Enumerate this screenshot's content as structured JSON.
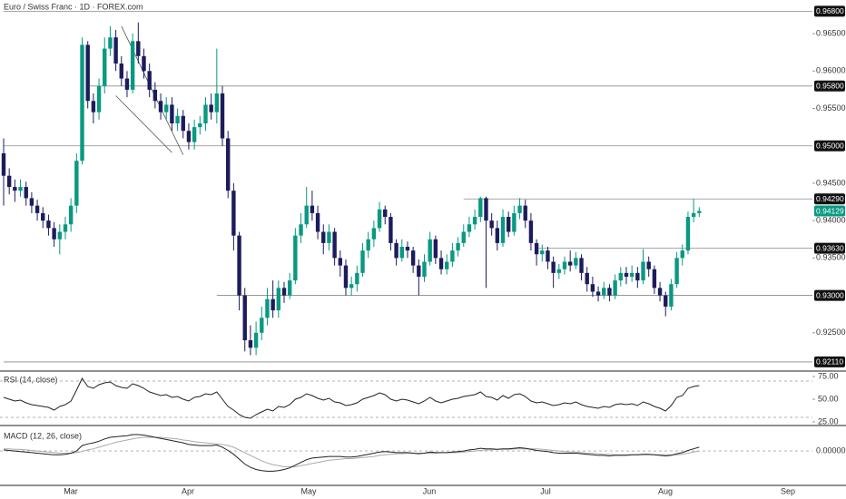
{
  "chart_data": {
    "type": "candlestick",
    "title": "Euro / Swiss Franc · 1D · FOREX.com",
    "up_color": "#089981",
    "down_color": "#1c1c5c",
    "ylim": [
      0.92,
      0.9695
    ],
    "yticks": [
      {
        "value": 0.965,
        "label": "0.96500"
      },
      {
        "value": 0.96,
        "label": "0.96000"
      },
      {
        "value": 0.955,
        "label": "0.95500"
      },
      {
        "value": 0.945,
        "label": "0.94500"
      },
      {
        "value": 0.94,
        "label": "0.94000"
      },
      {
        "value": 0.935,
        "label": "0.93500"
      },
      {
        "value": 0.925,
        "label": "0.92500"
      }
    ],
    "levels": [
      {
        "value": 0.968,
        "label": "0.96800",
        "from": 0
      },
      {
        "value": 0.958,
        "label": "0.95800",
        "from": 15
      },
      {
        "value": 0.95,
        "label": "0.95000",
        "from": 0
      },
      {
        "value": 0.9429,
        "label": "0.94290",
        "from": 82
      },
      {
        "value": 0.9363,
        "label": "0.93630",
        "from": 95
      },
      {
        "value": 0.93,
        "label": "0.93000",
        "from": 38
      },
      {
        "value": 0.9211,
        "label": "0.92110",
        "from": 0
      }
    ],
    "last_price": {
      "value": 0.94129,
      "label": "0.94129"
    },
    "trendlines": [
      {
        "x": [
          21,
          32
        ],
        "y": [
          0.966,
          0.9488
        ]
      },
      {
        "x": [
          20,
          30
        ],
        "y": [
          0.9567,
          0.9491
        ]
      }
    ],
    "months": [
      "Mar",
      "Apr",
      "May",
      "Jun",
      "Jul",
      "Aug",
      "Sep"
    ],
    "candles": [
      [
        0.949,
        0.951,
        0.942,
        0.946
      ],
      [
        0.946,
        0.947,
        0.9435,
        0.9445
      ],
      [
        0.9445,
        0.9455,
        0.9425,
        0.944
      ],
      [
        0.944,
        0.9455,
        0.9432,
        0.9445
      ],
      [
        0.9445,
        0.9452,
        0.942,
        0.943
      ],
      [
        0.943,
        0.9438,
        0.941,
        0.942
      ],
      [
        0.942,
        0.9428,
        0.94,
        0.941
      ],
      [
        0.941,
        0.9418,
        0.939,
        0.94
      ],
      [
        0.94,
        0.9408,
        0.938,
        0.939
      ],
      [
        0.939,
        0.9398,
        0.9365,
        0.9375
      ],
      [
        0.9375,
        0.9395,
        0.9355,
        0.9385
      ],
      [
        0.9385,
        0.9405,
        0.9375,
        0.9395
      ],
      [
        0.9395,
        0.943,
        0.9385,
        0.942
      ],
      [
        0.942,
        0.949,
        0.941,
        0.948
      ],
      [
        0.948,
        0.9645,
        0.9475,
        0.9635
      ],
      [
        0.9635,
        0.964,
        0.955,
        0.956
      ],
      [
        0.956,
        0.957,
        0.953,
        0.9545
      ],
      [
        0.9545,
        0.959,
        0.9535,
        0.958
      ],
      [
        0.958,
        0.9645,
        0.957,
        0.963
      ],
      [
        0.963,
        0.966,
        0.962,
        0.9645
      ],
      [
        0.9645,
        0.9655,
        0.96,
        0.961
      ],
      [
        0.961,
        0.962,
        0.958,
        0.959
      ],
      [
        0.959,
        0.96,
        0.9565,
        0.9575
      ],
      [
        0.9575,
        0.965,
        0.957,
        0.964
      ],
      [
        0.964,
        0.9665,
        0.961,
        0.962
      ],
      [
        0.962,
        0.963,
        0.959,
        0.96
      ],
      [
        0.96,
        0.961,
        0.9565,
        0.9575
      ],
      [
        0.9575,
        0.9585,
        0.955,
        0.956
      ],
      [
        0.956,
        0.957,
        0.9535,
        0.9545
      ],
      [
        0.9545,
        0.9565,
        0.9535,
        0.9555
      ],
      [
        0.9555,
        0.9565,
        0.952,
        0.953
      ],
      [
        0.953,
        0.955,
        0.952,
        0.954
      ],
      [
        0.954,
        0.9548,
        0.951,
        0.952
      ],
      [
        0.952,
        0.953,
        0.9495,
        0.9505
      ],
      [
        0.9505,
        0.9535,
        0.9495,
        0.9525
      ],
      [
        0.9525,
        0.954,
        0.9515,
        0.953
      ],
      [
        0.953,
        0.9565,
        0.952,
        0.9555
      ],
      [
        0.9555,
        0.957,
        0.9535,
        0.9545
      ],
      [
        0.9545,
        0.963,
        0.953,
        0.957
      ],
      [
        0.957,
        0.958,
        0.95,
        0.951
      ],
      [
        0.951,
        0.952,
        0.943,
        0.944
      ],
      [
        0.944,
        0.945,
        0.936,
        0.938
      ],
      [
        0.938,
        0.9385,
        0.928,
        0.93
      ],
      [
        0.93,
        0.931,
        0.9225,
        0.924
      ],
      [
        0.924,
        0.926,
        0.922,
        0.923
      ],
      [
        0.923,
        0.9265,
        0.922,
        0.925
      ],
      [
        0.925,
        0.9285,
        0.924,
        0.927
      ],
      [
        0.927,
        0.931,
        0.926,
        0.9295
      ],
      [
        0.9295,
        0.932,
        0.927,
        0.928
      ],
      [
        0.928,
        0.932,
        0.927,
        0.931
      ],
      [
        0.931,
        0.9318,
        0.929,
        0.93
      ],
      [
        0.93,
        0.933,
        0.9295,
        0.932
      ],
      [
        0.932,
        0.939,
        0.9315,
        0.938
      ],
      [
        0.938,
        0.941,
        0.937,
        0.9395
      ],
      [
        0.9395,
        0.9445,
        0.939,
        0.942
      ],
      [
        0.942,
        0.944,
        0.94,
        0.941
      ],
      [
        0.941,
        0.942,
        0.9375,
        0.9385
      ],
      [
        0.9385,
        0.9395,
        0.9355,
        0.937
      ],
      [
        0.937,
        0.9395,
        0.936,
        0.9385
      ],
      [
        0.9385,
        0.939,
        0.934,
        0.935
      ],
      [
        0.935,
        0.936,
        0.9325,
        0.934
      ],
      [
        0.934,
        0.9348,
        0.93,
        0.931
      ],
      [
        0.931,
        0.9325,
        0.93,
        0.9315
      ],
      [
        0.9315,
        0.934,
        0.9305,
        0.933
      ],
      [
        0.933,
        0.937,
        0.9325,
        0.936
      ],
      [
        0.936,
        0.9385,
        0.935,
        0.9375
      ],
      [
        0.9375,
        0.94,
        0.9365,
        0.939
      ],
      [
        0.939,
        0.9425,
        0.9385,
        0.9415
      ],
      [
        0.9415,
        0.942,
        0.9395,
        0.9405
      ],
      [
        0.9405,
        0.941,
        0.936,
        0.937
      ],
      [
        0.937,
        0.9375,
        0.934,
        0.935
      ],
      [
        0.935,
        0.9375,
        0.9345,
        0.9365
      ],
      [
        0.9365,
        0.9372,
        0.935,
        0.936
      ],
      [
        0.936,
        0.9365,
        0.933,
        0.934
      ],
      [
        0.934,
        0.9348,
        0.93,
        0.9325
      ],
      [
        0.9325,
        0.9355,
        0.9318,
        0.9345
      ],
      [
        0.9345,
        0.9385,
        0.934,
        0.9375
      ],
      [
        0.9375,
        0.938,
        0.9342,
        0.935
      ],
      [
        0.935,
        0.936,
        0.9328,
        0.9335
      ],
      [
        0.9335,
        0.9355,
        0.9328,
        0.9345
      ],
      [
        0.9345,
        0.937,
        0.9338,
        0.936
      ],
      [
        0.936,
        0.9378,
        0.9352,
        0.937
      ],
      [
        0.937,
        0.9395,
        0.9365,
        0.9385
      ],
      [
        0.9385,
        0.9405,
        0.9378,
        0.9395
      ],
      [
        0.9395,
        0.9415,
        0.9388,
        0.9405
      ],
      [
        0.9405,
        0.9432,
        0.9398,
        0.943
      ],
      [
        0.943,
        0.9432,
        0.931,
        0.94
      ],
      [
        0.94,
        0.941,
        0.938,
        0.939
      ],
      [
        0.939,
        0.94,
        0.936,
        0.937
      ],
      [
        0.937,
        0.9415,
        0.9365,
        0.9405
      ],
      [
        0.9405,
        0.9412,
        0.9378,
        0.9385
      ],
      [
        0.9385,
        0.942,
        0.938,
        0.941
      ],
      [
        0.941,
        0.943,
        0.9402,
        0.942
      ],
      [
        0.942,
        0.9428,
        0.939,
        0.94
      ],
      [
        0.94,
        0.941,
        0.936,
        0.937
      ],
      [
        0.937,
        0.9375,
        0.934,
        0.9355
      ],
      [
        0.9355,
        0.9368,
        0.9345,
        0.936
      ],
      [
        0.936,
        0.9365,
        0.9335,
        0.9345
      ],
      [
        0.9345,
        0.9352,
        0.931,
        0.933
      ],
      [
        0.933,
        0.9342,
        0.9322,
        0.9335
      ],
      [
        0.9335,
        0.9352,
        0.9328,
        0.9345
      ],
      [
        0.9345,
        0.936,
        0.9332,
        0.934
      ],
      [
        0.934,
        0.9358,
        0.9335,
        0.935
      ],
      [
        0.935,
        0.9355,
        0.932,
        0.933
      ],
      [
        0.933,
        0.9338,
        0.9305,
        0.9315
      ],
      [
        0.9315,
        0.9325,
        0.9298,
        0.9305
      ],
      [
        0.9305,
        0.9312,
        0.9292,
        0.93
      ],
      [
        0.93,
        0.9318,
        0.9295,
        0.931
      ],
      [
        0.931,
        0.9315,
        0.9292,
        0.93
      ],
      [
        0.93,
        0.9328,
        0.9295,
        0.932
      ],
      [
        0.932,
        0.9338,
        0.9312,
        0.933
      ],
      [
        0.933,
        0.9338,
        0.9315,
        0.9325
      ],
      [
        0.9325,
        0.934,
        0.9318,
        0.933
      ],
      [
        0.933,
        0.9338,
        0.931,
        0.932
      ],
      [
        0.932,
        0.9362,
        0.9315,
        0.9345
      ],
      [
        0.9345,
        0.9352,
        0.9325,
        0.9335
      ],
      [
        0.9335,
        0.934,
        0.9302,
        0.931
      ],
      [
        0.931,
        0.9318,
        0.9292,
        0.93
      ],
      [
        0.93,
        0.9305,
        0.9272,
        0.9285
      ],
      [
        0.9285,
        0.9322,
        0.928,
        0.9315
      ],
      [
        0.9315,
        0.9358,
        0.931,
        0.935
      ],
      [
        0.935,
        0.9368,
        0.934,
        0.936
      ],
      [
        0.936,
        0.9412,
        0.9355,
        0.9405
      ],
      [
        0.9405,
        0.9429,
        0.9398,
        0.941
      ],
      [
        0.941,
        0.9418,
        0.9405,
        0.94129
      ]
    ],
    "rsi": {
      "title": "RSI (14, close)",
      "color": "#222222",
      "ylim": [
        20,
        80
      ],
      "bands": [
        70,
        30
      ],
      "yticks": [
        {
          "value": 75,
          "label": "75.00"
        },
        {
          "value": 50,
          "label": "50.00"
        },
        {
          "value": 25,
          "label": "25.00"
        }
      ],
      "values": [
        52,
        50,
        48,
        49,
        46,
        44,
        43,
        42,
        41,
        38,
        42,
        44,
        48,
        60,
        73,
        64,
        62,
        66,
        68,
        69,
        65,
        63,
        62,
        67,
        65,
        62,
        58,
        56,
        54,
        55,
        52,
        53,
        50,
        48,
        52,
        53,
        56,
        55,
        58,
        50,
        42,
        38,
        33,
        30,
        29,
        33,
        36,
        39,
        37,
        42,
        41,
        44,
        50,
        52,
        56,
        54,
        51,
        49,
        51,
        47,
        46,
        43,
        44,
        46,
        50,
        52,
        54,
        57,
        55,
        50,
        48,
        50,
        49,
        47,
        45,
        48,
        52,
        48,
        46,
        48,
        50,
        51,
        53,
        54,
        55,
        58,
        53,
        52,
        49,
        54,
        51,
        55,
        56,
        53,
        48,
        46,
        47,
        45,
        43,
        44,
        46,
        45,
        47,
        44,
        42,
        41,
        40,
        42,
        41,
        44,
        45,
        44,
        45,
        43,
        47,
        45,
        42,
        40,
        37,
        43,
        52,
        54,
        62,
        64,
        65
      ]
    },
    "macd": {
      "title": "MACD (12, 26, close)",
      "macd_color": "#222222",
      "signal_color": "#aaaaaa",
      "ylim": [
        -0.0063,
        0.0045
      ],
      "yticks": [
        {
          "value": 0,
          "label": "0.00000"
        }
      ],
      "macd": [
        0.0002,
        0.0001,
        0,
        -0.0001,
        -0.0002,
        -0.0003,
        -0.0004,
        -0.0005,
        -0.0006,
        -0.0007,
        -0.0007,
        -0.0006,
        -0.0004,
        0,
        0.001,
        0.0013,
        0.0015,
        0.0018,
        0.0022,
        0.0025,
        0.0026,
        0.0027,
        0.0028,
        0.003,
        0.003,
        0.0029,
        0.0027,
        0.0025,
        0.0023,
        0.0021,
        0.0019,
        0.0017,
        0.0015,
        0.0012,
        0.0011,
        0.001,
        0.001,
        0.001,
        0.0011,
        0.0007,
        0.0001,
        -0.0006,
        -0.0015,
        -0.0024,
        -0.003,
        -0.0034,
        -0.0036,
        -0.0037,
        -0.0037,
        -0.0036,
        -0.0034,
        -0.0031,
        -0.0026,
        -0.0021,
        -0.0016,
        -0.0013,
        -0.0012,
        -0.0011,
        -0.001,
        -0.001,
        -0.001,
        -0.0011,
        -0.0011,
        -0.001,
        -0.0008,
        -0.0006,
        -0.0004,
        -0.0002,
        -0.0001,
        -0.0002,
        -0.0003,
        -0.0003,
        -0.0003,
        -0.0004,
        -0.0005,
        -0.0004,
        -0.0002,
        -0.0003,
        -0.0003,
        -0.0003,
        -0.0002,
        -0.0001,
        0,
        0.0002,
        0.0003,
        0.0005,
        0.0004,
        0.0004,
        0.0003,
        0.0004,
        0.0004,
        0.0005,
        0.0006,
        0.0005,
        0.0003,
        0.0001,
        0,
        -0.0001,
        -0.0003,
        -0.0004,
        -0.0004,
        -0.0004,
        -0.0004,
        -0.0005,
        -0.0006,
        -0.0007,
        -0.0008,
        -0.0008,
        -0.0009,
        -0.0008,
        -0.0008,
        -0.0008,
        -0.0007,
        -0.0007,
        -0.0006,
        -0.0006,
        -0.0007,
        -0.0008,
        -0.0009,
        -0.0008,
        -0.0005,
        -0.0003,
        0.0001,
        0.0004,
        0.0007
      ],
      "signal": [
        0.0004,
        0.0004,
        0.0003,
        0.0003,
        0.0002,
        0.0001,
        0,
        -0.0001,
        -0.0002,
        -0.0003,
        -0.0004,
        -0.0004,
        -0.0004,
        -0.0003,
        -0.0001,
        0.0002,
        0.0004,
        0.0007,
        0.001,
        0.0013,
        0.0016,
        0.0018,
        0.002,
        0.0022,
        0.0024,
        0.0025,
        0.0025,
        0.0025,
        0.0025,
        0.0024,
        0.0023,
        0.0022,
        0.002,
        0.0019,
        0.0017,
        0.0016,
        0.0015,
        0.0014,
        0.0013,
        0.0012,
        0.001,
        0.0007,
        0.0002,
        -0.0003,
        -0.0008,
        -0.0013,
        -0.0018,
        -0.0022,
        -0.0025,
        -0.0027,
        -0.0029,
        -0.0029,
        -0.0029,
        -0.0027,
        -0.0025,
        -0.0023,
        -0.0021,
        -0.0019,
        -0.0017,
        -0.0016,
        -0.0015,
        -0.0014,
        -0.0014,
        -0.0013,
        -0.0012,
        -0.0011,
        -0.001,
        -0.0008,
        -0.0007,
        -0.0006,
        -0.0005,
        -0.0005,
        -0.0004,
        -0.0004,
        -0.0004,
        -0.0004,
        -0.0004,
        -0.0004,
        -0.0003,
        -0.0003,
        -0.0003,
        -0.0003,
        -0.0002,
        -0.0001,
        0,
        0.0001,
        0.0002,
        0.0002,
        0.0003,
        0.0003,
        0.0003,
        0.0004,
        0.0004,
        0.0004,
        0.0004,
        0.0004,
        0.0003,
        0.0002,
        0.0001,
        0,
        -0.0001,
        -0.0002,
        -0.0002,
        -0.0003,
        -0.0004,
        -0.0004,
        -0.0005,
        -0.0006,
        -0.0006,
        -0.0007,
        -0.0007,
        -0.0007,
        -0.0007,
        -0.0007,
        -0.0007,
        -0.0007,
        -0.0007,
        -0.0007,
        -0.0007,
        -0.0007,
        -0.0007,
        -0.0006,
        -0.0004,
        -0.0002,
        0
      ]
    }
  }
}
